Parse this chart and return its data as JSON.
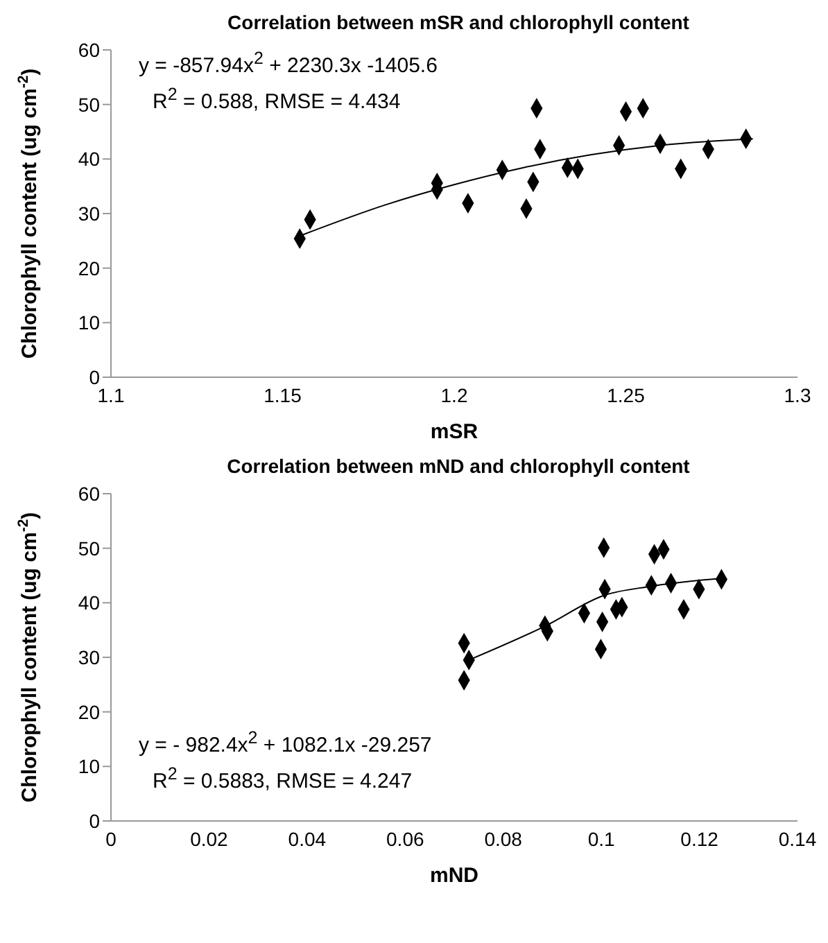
{
  "chart_data": [
    {
      "type": "scatter",
      "title": "Correlation between mSR and chlorophyll content",
      "xlabel": "mSR",
      "ylabel": "Chlorophyll content (ug cm$^{-2}$)",
      "xlim": [
        1.1,
        1.3
      ],
      "xticks": [
        1.1,
        1.15,
        1.2,
        1.25,
        1.3
      ],
      "ylim": [
        0,
        60
      ],
      "yticks": [
        0,
        10,
        20,
        30,
        40,
        50,
        60
      ],
      "annotations": [
        "y = -857.94x$^{2}$ + 2230.3x -1405.6",
        "R$^{2}$ = 0.588, RMSE = 4.434"
      ],
      "series": [
        {
          "marker": "diamond",
          "color": "#000000",
          "x": [
            1.155,
            1.158,
            1.195,
            1.195,
            1.204,
            1.214,
            1.221,
            1.223,
            1.224,
            1.225,
            1.233,
            1.236,
            1.248,
            1.25,
            1.255,
            1.26,
            1.266,
            1.274,
            1.285
          ],
          "values": [
            25.4,
            28.9,
            35.6,
            34.4,
            31.9,
            38.0,
            30.9,
            35.8,
            49.3,
            41.8,
            38.4,
            38.2,
            42.5,
            48.7,
            49.3,
            42.8,
            38.2,
            41.8,
            43.7
          ]
        },
        {
          "type": "line",
          "color": "#000000",
          "x": [
            1.155,
            1.18,
            1.2,
            1.22,
            1.24,
            1.26,
            1.287
          ],
          "values": [
            25.9,
            31.6,
            35.3,
            38.4,
            40.8,
            42.5,
            43.7
          ]
        }
      ]
    },
    {
      "type": "scatter",
      "title": "Correlation between mND and chlorophyll content",
      "xlabel": "mND",
      "ylabel": "Chlorophyll content (ug cm$^{-2}$)",
      "xlim": [
        0,
        0.14
      ],
      "xticks": [
        0,
        0.02,
        0.04,
        0.06,
        0.08,
        0.1,
        0.12,
        0.14
      ],
      "ylim": [
        0,
        60
      ],
      "yticks": [
        0,
        10,
        20,
        30,
        40,
        50,
        60
      ],
      "annotations": [
        "y = -  982.4x$^{2}$ + 1082.1x -29.257",
        "R$^{2}$ = 0.5883, RMSE = 4.247"
      ],
      "series": [
        {
          "marker": "diamond",
          "color": "#000000",
          "x": [
            0.072,
            0.073,
            0.072,
            0.0885,
            0.089,
            0.0965,
            0.1005,
            0.1007,
            0.1002,
            0.0999,
            0.103,
            0.1042,
            0.1102,
            0.1108,
            0.1127,
            0.1142,
            0.1168,
            0.1199,
            0.1245
          ],
          "values": [
            32.6,
            29.5,
            25.8,
            35.8,
            34.8,
            38.1,
            50.1,
            42.5,
            36.5,
            31.5,
            38.8,
            39.2,
            43.2,
            48.9,
            49.8,
            43.6,
            38.8,
            42.5,
            44.3
          ]
        },
        {
          "type": "line",
          "color": "#000000",
          "x": [
            0.073,
            0.0885,
            0.1007,
            0.11,
            0.1245
          ],
          "values": [
            29.5,
            35.7,
            41.4,
            43.0,
            44.5
          ]
        }
      ]
    }
  ]
}
